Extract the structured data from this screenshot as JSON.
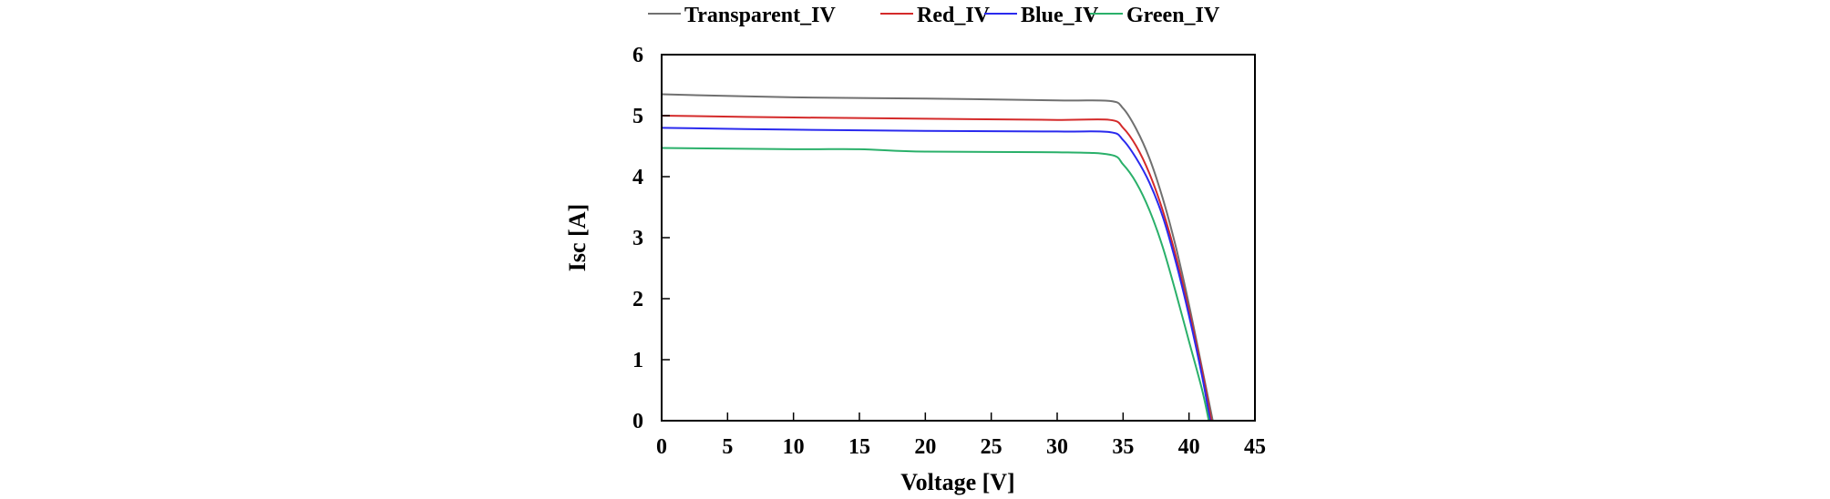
{
  "chart_data": {
    "type": "line",
    "title": "",
    "xlabel": "Voltage [V]",
    "ylabel": "Isc [A]",
    "xlim": [
      0,
      45
    ],
    "ylim": [
      0,
      6
    ],
    "xticks": [
      0,
      5,
      10,
      15,
      20,
      25,
      30,
      35,
      40,
      45
    ],
    "yticks": [
      0,
      1,
      2,
      3,
      4,
      5,
      6
    ],
    "grid": false,
    "legend_position": "top",
    "series": [
      {
        "name": "Transparent_IV",
        "color": "#707070",
        "x": [
          0,
          10,
          20,
          30,
          34,
          35,
          36,
          37,
          38,
          39,
          40,
          41,
          41.8
        ],
        "y": [
          5.35,
          5.3,
          5.28,
          5.25,
          5.24,
          5.12,
          4.78,
          4.3,
          3.65,
          2.85,
          1.9,
          0.85,
          0
        ]
      },
      {
        "name": "Red_IV",
        "color": "#d42a2a",
        "x": [
          0,
          10,
          20,
          30,
          34,
          35,
          36,
          37,
          38,
          39,
          40,
          41,
          41.7
        ],
        "y": [
          5.0,
          4.97,
          4.95,
          4.93,
          4.93,
          4.8,
          4.5,
          4.05,
          3.45,
          2.7,
          1.8,
          0.8,
          0
        ]
      },
      {
        "name": "Blue_IV",
        "color": "#2a2aee",
        "x": [
          0,
          10,
          20,
          30,
          34,
          35,
          36,
          37,
          38,
          39,
          40,
          41,
          41.6
        ],
        "y": [
          4.8,
          4.77,
          4.75,
          4.74,
          4.73,
          4.6,
          4.3,
          3.9,
          3.35,
          2.6,
          1.72,
          0.72,
          0
        ]
      },
      {
        "name": "Green_IV",
        "color": "#2ab06a",
        "x": [
          0,
          10,
          15,
          20,
          30,
          34,
          35,
          36,
          37,
          38,
          39,
          40,
          41,
          41.5
        ],
        "y": [
          4.47,
          4.45,
          4.45,
          4.41,
          4.4,
          4.36,
          4.2,
          3.9,
          3.45,
          2.85,
          2.1,
          1.3,
          0.5,
          0
        ]
      }
    ]
  }
}
